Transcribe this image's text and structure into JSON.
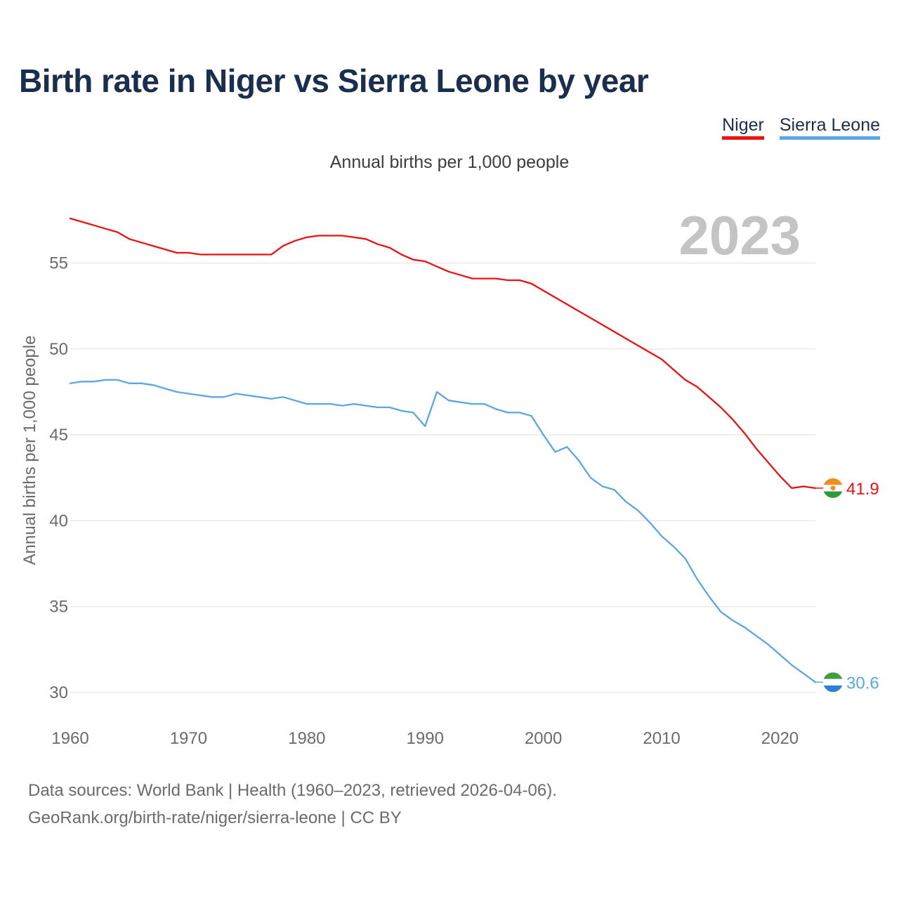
{
  "colors": {
    "niger": "#ee1111",
    "sierra_leone": "#5ba6e4",
    "title": "#1a2e4f"
  },
  "chart_data": {
    "type": "line",
    "title": "Birth rate in Niger vs Sierra Leone by year",
    "subtitle": "Annual births per 1,000 people",
    "ylabel": "Annual births per 1,000 people",
    "xlabel": "",
    "year_label": "2023",
    "x": [
      1960,
      1961,
      1962,
      1963,
      1964,
      1965,
      1966,
      1967,
      1968,
      1969,
      1970,
      1971,
      1972,
      1973,
      1974,
      1975,
      1976,
      1977,
      1978,
      1979,
      1980,
      1981,
      1982,
      1983,
      1984,
      1985,
      1986,
      1987,
      1988,
      1989,
      1990,
      1991,
      1992,
      1993,
      1994,
      1995,
      1996,
      1997,
      1998,
      1999,
      2000,
      2001,
      2002,
      2003,
      2004,
      2005,
      2006,
      2007,
      2008,
      2009,
      2010,
      2011,
      2012,
      2013,
      2014,
      2015,
      2016,
      2017,
      2018,
      2019,
      2020,
      2021,
      2022,
      2023
    ],
    "xlim": [
      1960,
      2023
    ],
    "ylim": [
      30,
      57.6
    ],
    "xticks": [
      "1960",
      "1970",
      "1980",
      "1990",
      "2000",
      "2010",
      "2020"
    ],
    "yticks": [
      "30",
      "35",
      "40",
      "45",
      "50",
      "55"
    ],
    "series": [
      {
        "name": "Niger",
        "color": "#ee1111",
        "end_label": "41.9",
        "values": [
          57.6,
          57.4,
          57.2,
          57.0,
          56.8,
          56.4,
          56.2,
          56.0,
          55.8,
          55.6,
          55.6,
          55.5,
          55.5,
          55.5,
          55.5,
          55.5,
          55.5,
          55.5,
          56.0,
          56.3,
          56.5,
          56.6,
          56.6,
          56.6,
          56.5,
          56.4,
          56.1,
          55.9,
          55.5,
          55.2,
          55.1,
          54.8,
          54.5,
          54.3,
          54.1,
          54.1,
          54.1,
          54.0,
          54.0,
          53.8,
          53.4,
          53.0,
          52.6,
          52.2,
          51.8,
          51.4,
          51.0,
          50.6,
          50.2,
          49.8,
          49.4,
          48.8,
          48.2,
          47.8,
          47.2,
          46.6,
          45.9,
          45.1,
          44.2,
          43.4,
          42.6,
          41.9,
          42.0,
          41.9
        ]
      },
      {
        "name": "Sierra Leone",
        "color": "#5ba6e4",
        "end_label": "30.6",
        "values": [
          48.0,
          48.1,
          48.1,
          48.2,
          48.2,
          48.0,
          48.0,
          47.9,
          47.7,
          47.5,
          47.4,
          47.3,
          47.2,
          47.2,
          47.4,
          47.3,
          47.2,
          47.1,
          47.2,
          47.0,
          46.8,
          46.8,
          46.8,
          46.7,
          46.8,
          46.7,
          46.6,
          46.6,
          46.4,
          46.3,
          45.5,
          47.5,
          47.0,
          46.9,
          46.8,
          46.8,
          46.5,
          46.3,
          46.3,
          46.1,
          45.0,
          44.0,
          44.3,
          43.5,
          42.5,
          42.0,
          41.8,
          41.1,
          40.6,
          39.9,
          39.1,
          38.5,
          37.8,
          36.6,
          35.6,
          34.7,
          34.2,
          33.8,
          33.3,
          32.8,
          32.2,
          31.6,
          31.1,
          30.6
        ]
      }
    ]
  },
  "legend": {
    "niger": "Niger",
    "sierra_leone": "Sierra Leone"
  },
  "footer": {
    "line1": "Data sources: World Bank | Health (1960–2023, retrieved 2026-04-06).",
    "line2": "GeoRank.org/birth-rate/niger/sierra-leone | CC BY"
  }
}
